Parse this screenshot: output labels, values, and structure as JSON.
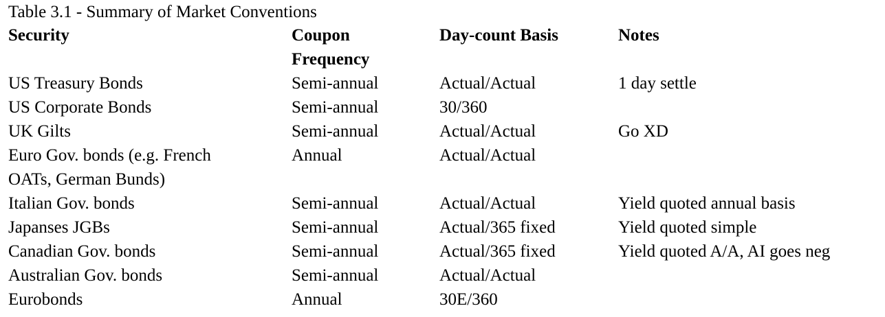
{
  "caption": "Table 3.1 - Summary of Market Conventions",
  "columns": {
    "security": "Security",
    "coupon_line1": "Coupon",
    "coupon_line2": "Frequency",
    "daycount": "Day-count Basis",
    "notes": "Notes"
  },
  "rows": [
    {
      "security": "US Treasury Bonds",
      "coupon": "Semi-annual",
      "daycount": "Actual/Actual",
      "notes": "1 day settle"
    },
    {
      "security": "US Corporate Bonds",
      "coupon": "Semi-annual",
      "daycount": "30/360",
      "notes": ""
    },
    {
      "security": "UK Gilts",
      "coupon": "Semi-annual",
      "daycount": "Actual/Actual",
      "notes": "Go XD"
    },
    {
      "security": "Euro Gov. bonds (e.g. French",
      "security_line2": "OATs, German Bunds)",
      "coupon": "Annual",
      "daycount": "Actual/Actual",
      "notes": ""
    },
    {
      "security": "Italian Gov. bonds",
      "coupon": "Semi-annual",
      "daycount": "Actual/Actual",
      "notes": "Yield quoted annual basis"
    },
    {
      "security": "Japanses JGBs",
      "coupon": "Semi-annual",
      "daycount": "Actual/365 fixed",
      "notes": "Yield quoted simple"
    },
    {
      "security": "Canadian Gov. bonds",
      "coupon": "Semi-annual",
      "daycount": "Actual/365 fixed",
      "notes": "Yield quoted A/A, AI goes neg"
    },
    {
      "security": "Australian Gov. bonds",
      "coupon": "Semi-annual",
      "daycount": "Actual/Actual",
      "notes": ""
    },
    {
      "security": "Eurobonds",
      "coupon": "Annual",
      "daycount": "30E/360",
      "notes": ""
    }
  ]
}
